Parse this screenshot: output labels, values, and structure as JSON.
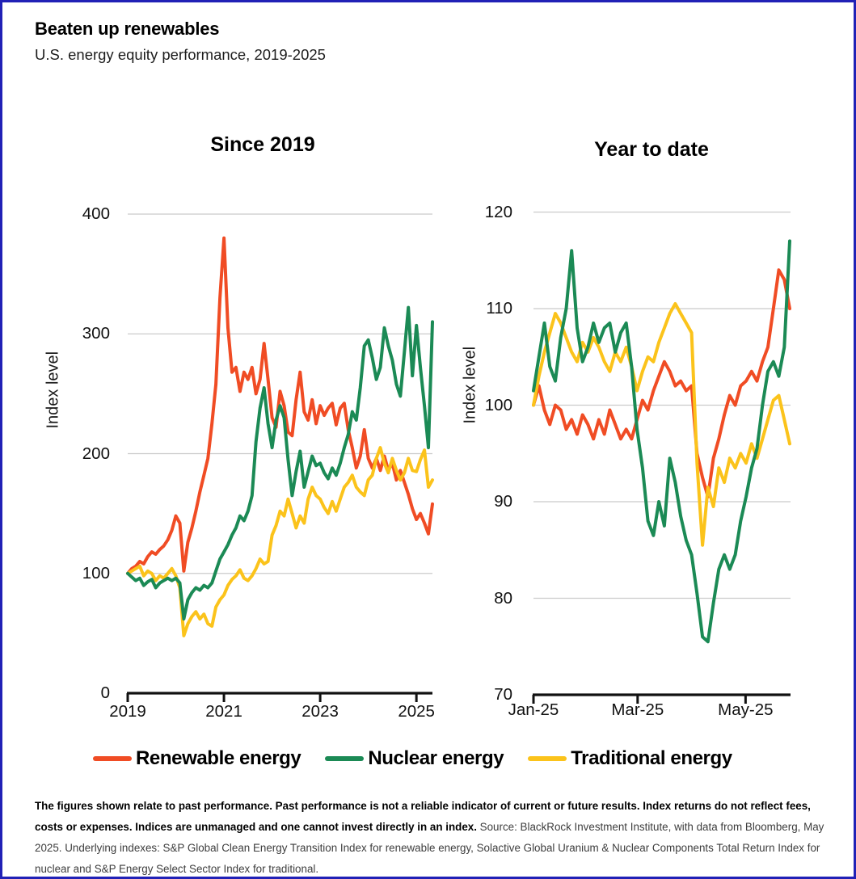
{
  "header": {
    "title": "Beaten up renewables",
    "subtitle": "U.S. energy equity performance, 2019-2025"
  },
  "colors": {
    "renewable": "#f04c24",
    "nuclear": "#1b8a55",
    "traditional": "#fbc31b",
    "grid": "#cbcbcb",
    "axis": "#111111",
    "border": "#2121b6"
  },
  "legend": [
    {
      "label": "Renewable energy",
      "color": "#f04c24"
    },
    {
      "label": "Nuclear energy",
      "color": "#1b8a55"
    },
    {
      "label": "Traditional energy",
      "color": "#fbc31b"
    }
  ],
  "footnote": {
    "bold": "The figures shown relate to past performance. Past performance is not a reliable indicator of current or future results. Index returns do not reflect fees, costs or expenses. Indices are unmanaged and one cannot invest directly in an index.",
    "regular": " Source: BlackRock Investment Institute, with data from Bloomberg, May 2025. Underlying indexes: S&P Global Clean Energy Transition Index for renewable energy, Solactive Global Uranium & Nuclear Components Total Return Index for nuclear and S&P Energy Select Sector Index for traditional."
  },
  "chart_data": [
    {
      "type": "line",
      "title": "Since 2019",
      "ylabel": "Index level",
      "x_unit": "monthly, Jan 2019 - May 2025",
      "ylim": [
        0,
        400
      ],
      "yticks": [
        0,
        100,
        200,
        300,
        400
      ],
      "xticks": [
        {
          "label": "2019",
          "index": 0
        },
        {
          "label": "2021",
          "index": 24
        },
        {
          "label": "2023",
          "index": 48
        },
        {
          "label": "2025",
          "index": 72
        }
      ],
      "grid": true,
      "series": [
        {
          "name": "Renewable energy",
          "color": "#f04c24",
          "values": [
            100,
            104,
            106,
            110,
            108,
            114,
            118,
            116,
            120,
            123,
            128,
            136,
            148,
            142,
            102,
            126,
            138,
            152,
            168,
            182,
            196,
            225,
            258,
            330,
            380,
            305,
            268,
            272,
            252,
            268,
            262,
            272,
            250,
            262,
            292,
            262,
            230,
            222,
            252,
            240,
            218,
            215,
            245,
            268,
            235,
            228,
            245,
            225,
            240,
            232,
            238,
            242,
            224,
            238,
            242,
            220,
            205,
            188,
            198,
            220,
            196,
            188,
            196,
            186,
            198,
            186,
            192,
            178,
            186,
            176,
            166,
            154,
            145,
            150,
            142,
            133,
            158
          ]
        },
        {
          "name": "Nuclear energy",
          "color": "#1b8a55",
          "values": [
            100,
            97,
            94,
            96,
            90,
            93,
            95,
            88,
            92,
            94,
            96,
            94,
            96,
            92,
            62,
            78,
            84,
            88,
            86,
            90,
            88,
            92,
            102,
            112,
            118,
            124,
            132,
            138,
            148,
            144,
            152,
            165,
            210,
            238,
            255,
            225,
            205,
            228,
            240,
            230,
            195,
            165,
            185,
            202,
            172,
            185,
            198,
            190,
            192,
            184,
            179,
            188,
            182,
            192,
            205,
            216,
            235,
            228,
            255,
            290,
            295,
            280,
            262,
            272,
            305,
            290,
            278,
            258,
            248,
            285,
            322,
            265,
            307,
            272,
            240,
            205,
            310
          ]
        },
        {
          "name": "Traditional energy",
          "color": "#fbc31b",
          "values": [
            100,
            102,
            104,
            106,
            98,
            102,
            100,
            94,
            98,
            96,
            100,
            104,
            98,
            88,
            48,
            58,
            64,
            68,
            62,
            66,
            58,
            56,
            72,
            78,
            82,
            90,
            95,
            98,
            103,
            96,
            94,
            98,
            104,
            112,
            108,
            110,
            132,
            140,
            152,
            148,
            162,
            150,
            138,
            148,
            142,
            162,
            172,
            165,
            162,
            155,
            150,
            160,
            152,
            162,
            172,
            176,
            182,
            172,
            168,
            165,
            178,
            182,
            196,
            205,
            192,
            184,
            196,
            186,
            178,
            184,
            196,
            186,
            185,
            195,
            203,
            172,
            178
          ]
        }
      ]
    },
    {
      "type": "line",
      "title": "Year to date",
      "ylabel": "Index level",
      "x_unit": "Jan 1 2025 - late May 2025, evenly spaced",
      "ylim": [
        70,
        120
      ],
      "yticks": [
        70,
        80,
        90,
        100,
        110,
        120
      ],
      "xticks": [
        {
          "label": "Jan-25",
          "index": 0
        },
        {
          "label": "Mar-25",
          "index": 19.1
        },
        {
          "label": "May-25",
          "index": 38.9
        }
      ],
      "grid": true,
      "series": [
        {
          "name": "Renewable energy",
          "color": "#f04c24",
          "values": [
            100,
            102,
            99.5,
            98,
            100,
            99.5,
            97.5,
            98.5,
            97,
            99,
            98,
            96.5,
            98.5,
            97,
            99.5,
            98,
            96.5,
            97.5,
            96.5,
            98.5,
            100.5,
            99.5,
            101.5,
            103,
            104.5,
            103.5,
            102,
            102.5,
            101.5,
            102,
            95,
            92.5,
            90.5,
            94.5,
            96.5,
            99,
            101,
            100,
            102,
            102.5,
            103.5,
            102.5,
            104.5,
            106,
            110,
            114,
            113,
            110
          ]
        },
        {
          "name": "Nuclear energy",
          "color": "#1b8a55",
          "values": [
            101.5,
            105,
            108.5,
            104,
            102.5,
            107,
            110,
            116,
            108,
            104.5,
            106,
            108.5,
            106.5,
            108,
            108.5,
            105.5,
            107.5,
            108.5,
            104,
            97.5,
            93.5,
            88,
            86.5,
            90,
            87.5,
            94.5,
            92,
            88.5,
            86,
            84.5,
            80.5,
            76,
            75.5,
            79.5,
            83,
            84.5,
            83,
            84.5,
            88,
            90.5,
            93.5,
            95.5,
            100,
            103.5,
            104.5,
            103,
            106,
            117
          ]
        },
        {
          "name": "Traditional energy",
          "color": "#fbc31b",
          "values": [
            100,
            103,
            105.5,
            107.5,
            109.5,
            108.5,
            107,
            105.5,
            104.5,
            106.5,
            105.5,
            107,
            106,
            104.5,
            103.5,
            105.5,
            104.5,
            106,
            104,
            101.5,
            103.5,
            105,
            104.5,
            106.5,
            108,
            109.5,
            110.5,
            109.5,
            108.5,
            107.5,
            94,
            85.5,
            91.5,
            89.5,
            93.5,
            92,
            94.5,
            93.5,
            95,
            94,
            96,
            94.5,
            96.5,
            98.5,
            100.5,
            101,
            98.5,
            96
          ]
        }
      ]
    }
  ]
}
